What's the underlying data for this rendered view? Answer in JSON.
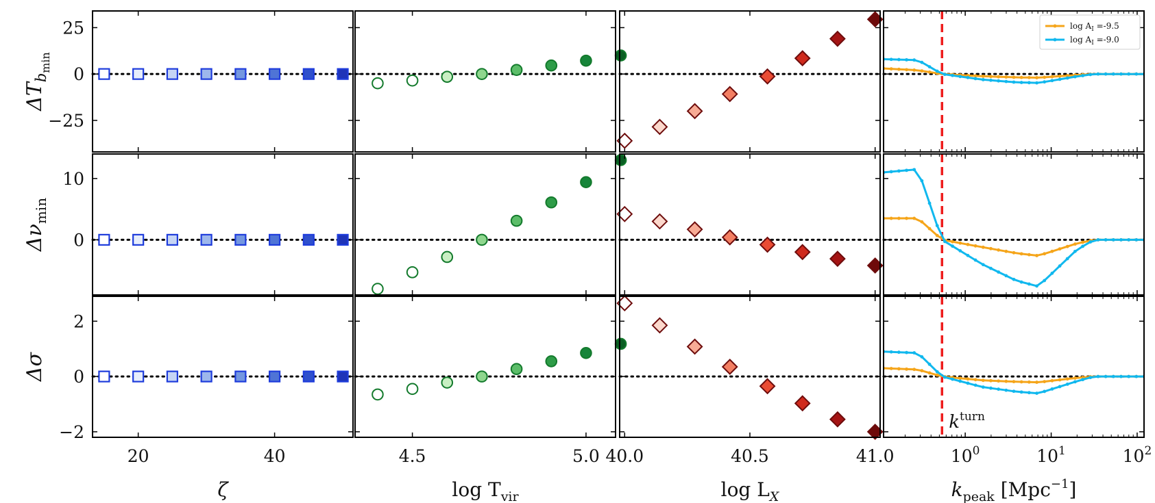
{
  "chart_data": {
    "type": "scatter",
    "title": "",
    "rows": [
      {
        "key": "dT",
        "ylabel": "ΔT_b,min",
        "ylabel_main": "ΔT",
        "ylabel_sub": "b",
        "ylabel_subsub": "min",
        "ylim": [
          -42,
          34
        ],
        "yticks": [
          25,
          0,
          -25
        ],
        "ytick_labels": [
          "25",
          "0",
          "−25"
        ]
      },
      {
        "key": "dnu",
        "ylabel": "Δν_min",
        "ylabel_main": "Δν",
        "ylabel_sub": "min",
        "ylim": [
          -9,
          14
        ],
        "yticks": [
          10,
          0
        ],
        "ytick_labels": [
          "10",
          "0"
        ]
      },
      {
        "key": "dsig",
        "ylabel": "Δσ",
        "ylabel_main": "Δσ",
        "ylabel_sub": "",
        "ylim": [
          -2.2,
          2.9
        ],
        "yticks": [
          2,
          0,
          -2
        ],
        "ytick_labels": [
          "2",
          "0",
          "−2"
        ]
      }
    ],
    "columns": [
      {
        "key": "zeta",
        "xlabel": "ζ",
        "xlim": [
          13.3,
          51.5
        ],
        "xticks": [
          20,
          40
        ],
        "xtick_labels": [
          "20",
          "40"
        ],
        "marker": "square",
        "x": [
          15,
          20,
          25,
          30,
          35,
          40,
          45,
          50
        ],
        "fills": [
          "#ffffff",
          "#e6edfb",
          "#c6d5f4",
          "#9db7ec",
          "#7497e0",
          "#4f74d6",
          "#2f50cc",
          "#1f34b8"
        ],
        "edge": "#1f3ddc",
        "series": {
          "dT": [
            0,
            0,
            0,
            0,
            0,
            0,
            0,
            0
          ],
          "dnu": [
            0,
            0,
            0,
            0,
            0,
            0,
            0,
            0
          ],
          "dsig": [
            0,
            0,
            0,
            0,
            0,
            0,
            0,
            0
          ]
        }
      },
      {
        "key": "tvir",
        "xlabel": "log T_vir",
        "xlabel_main": "log T",
        "xlabel_sub": "vir",
        "xlim": [
          4.335,
          5.085
        ],
        "xticks": [
          4.5,
          5.0
        ],
        "xtick_labels": [
          "4.5",
          "5.0"
        ],
        "marker": "circle",
        "x": [
          4.4,
          4.5,
          4.6,
          4.7,
          4.8,
          4.9,
          5.0,
          5.1
        ],
        "fills": [
          "#ffffff",
          "#ffffff",
          "#c9efc3",
          "#8fd68e",
          "#5cbd69",
          "#2e9c48",
          "#17853a",
          "#0b5e23"
        ],
        "edge": "#137a2c",
        "series": {
          "dT": [
            -5,
            -3.5,
            -1.5,
            0,
            2.2,
            4.6,
            7.2,
            10
          ],
          "dnu": [
            -8,
            -5.3,
            -2.8,
            0,
            3.1,
            6.1,
            9.4,
            13
          ],
          "dsig": [
            -0.65,
            -0.45,
            -0.22,
            0,
            0.27,
            0.55,
            0.85,
            1.18
          ]
        }
      },
      {
        "key": "lx",
        "xlabel": "log L_X",
        "xlabel_main": "log L",
        "xlabel_sub": "X",
        "xlim": [
          39.98,
          41.02
        ],
        "xticks": [
          40.0,
          40.5,
          41.0
        ],
        "xtick_labels": [
          "40.0",
          "40.5",
          "41.0"
        ],
        "marker": "diamond",
        "x": [
          40.0,
          40.14,
          40.28,
          40.42,
          40.57,
          40.71,
          40.85,
          41.0
        ],
        "fills": [
          "#ffffff",
          "#fcd8cc",
          "#f7ab95",
          "#f37f63",
          "#ea4c34",
          "#cf2a1d",
          "#a51414",
          "#6e0a0a"
        ],
        "edge": "#6d0c0c",
        "series": {
          "dT": [
            -36,
            -28.5,
            -20,
            -10.8,
            -1.3,
            8.5,
            19,
            29.5
          ],
          "dnu": [
            4.2,
            3.0,
            1.7,
            0.4,
            -0.8,
            -2.0,
            -3.1,
            -4.2
          ],
          "dsig": [
            2.65,
            1.85,
            1.08,
            0.35,
            -0.35,
            -0.97,
            -1.55,
            -2.0
          ]
        }
      },
      {
        "key": "kpeak",
        "xlabel": "k_peak [Mpc^-1]",
        "xlabel_main": "k",
        "xlabel_sub": "peak",
        "xlabel_unit": " [Mpc",
        "xlabel_exp": "−1",
        "xlabel_close": "]",
        "xscale": "log",
        "xlim_log10": [
          -0.95,
          2.08
        ],
        "xticks_log10": [
          0,
          1,
          2
        ],
        "xtick_labels": [
          "10",
          "10",
          "10"
        ],
        "xtick_exps": [
          "0",
          "1",
          "2"
        ],
        "vline_log10": -0.27,
        "vline_label": "k",
        "vline_label_sup": "turn",
        "vline_color": "#ee1c1c",
        "legend": {
          "loc": "upper right",
          "entries": [
            {
              "label": "log A_I =-9.5",
              "label_main": "log A",
              "label_sub": "I",
              "label_tail": " =-9.5",
              "color": "#f5a51a"
            },
            {
              "label": "log A_I =-9.0",
              "label_main": "log A",
              "label_sub": "I",
              "label_tail": " =-9.0",
              "color": "#11b8ee"
            }
          ]
        },
        "curves": {
          "dT": {
            "x_log10": [
              -0.95,
              -0.55,
              -0.27,
              0.2,
              0.6,
              0.85,
              1.3,
              1.5,
              2.0
            ],
            "a95": [
              3,
              2,
              0,
              -1.2,
              -1.8,
              -2.0,
              -0.5,
              0,
              0
            ],
            "a90": [
              8,
              7.5,
              0,
              -3.0,
              -4.5,
              -4.8,
              -1.3,
              0,
              0
            ]
          },
          "dnu": {
            "x_log10": [
              -0.95,
              -0.55,
              -0.27,
              0.2,
              0.6,
              0.85,
              1.3,
              1.5,
              2.0
            ],
            "a95": [
              3.5,
              3.5,
              0,
              -1.2,
              -2.2,
              -2.6,
              -0.6,
              0,
              0
            ],
            "a90": [
              11,
              11.5,
              0,
              -4.0,
              -6.7,
              -7.6,
              -1.6,
              0,
              0
            ]
          },
          "dsig": {
            "x_log10": [
              -0.95,
              -0.55,
              -0.27,
              0.2,
              0.6,
              0.85,
              1.3,
              1.5,
              2.0
            ],
            "a95": [
              0.3,
              0.25,
              0,
              -0.14,
              -0.19,
              -0.21,
              -0.05,
              0,
              0
            ],
            "a90": [
              0.9,
              0.85,
              0,
              -0.38,
              -0.55,
              -0.61,
              -0.17,
              0,
              0
            ]
          }
        }
      }
    ]
  }
}
